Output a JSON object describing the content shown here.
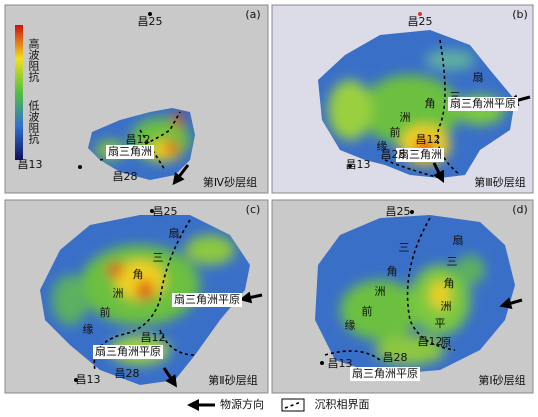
{
  "legend_bar": {
    "high": "高波阻抗",
    "low": "低波阻抗"
  },
  "panels": [
    {
      "label": "(a)",
      "layer": "第Ⅳ砂层组",
      "texts": [
        "昌25",
        "昌12",
        "扇三角洲",
        "昌13",
        "昌28"
      ]
    },
    {
      "label": "(b)",
      "layer": "第Ⅲ砂层组",
      "texts": [
        "昌25",
        "扇",
        "三",
        "角",
        "洲",
        "前",
        "缘",
        "扇三角洲平原",
        "昌12",
        "扇三角洲",
        "昌28",
        "昌13"
      ]
    },
    {
      "label": "(c)",
      "layer": "第Ⅱ砂层组",
      "texts": [
        "昌25",
        "扇",
        "三",
        "角",
        "洲",
        "前",
        "缘",
        "扇三角洲平原",
        "昌12",
        "扇三角洲平原",
        "昌28",
        "昌13"
      ]
    },
    {
      "label": "(d)",
      "layer": "第Ⅰ砂层组",
      "texts": [
        "昌25",
        "扇",
        "三",
        "角",
        "洲",
        "平",
        "原",
        "三",
        "角",
        "洲",
        "前",
        "缘",
        "昌12",
        "昌28",
        "扇三角洲平原",
        "昌13"
      ]
    }
  ],
  "footer_legend": {
    "source": "物源方向",
    "boundary": "沉积相界面"
  }
}
